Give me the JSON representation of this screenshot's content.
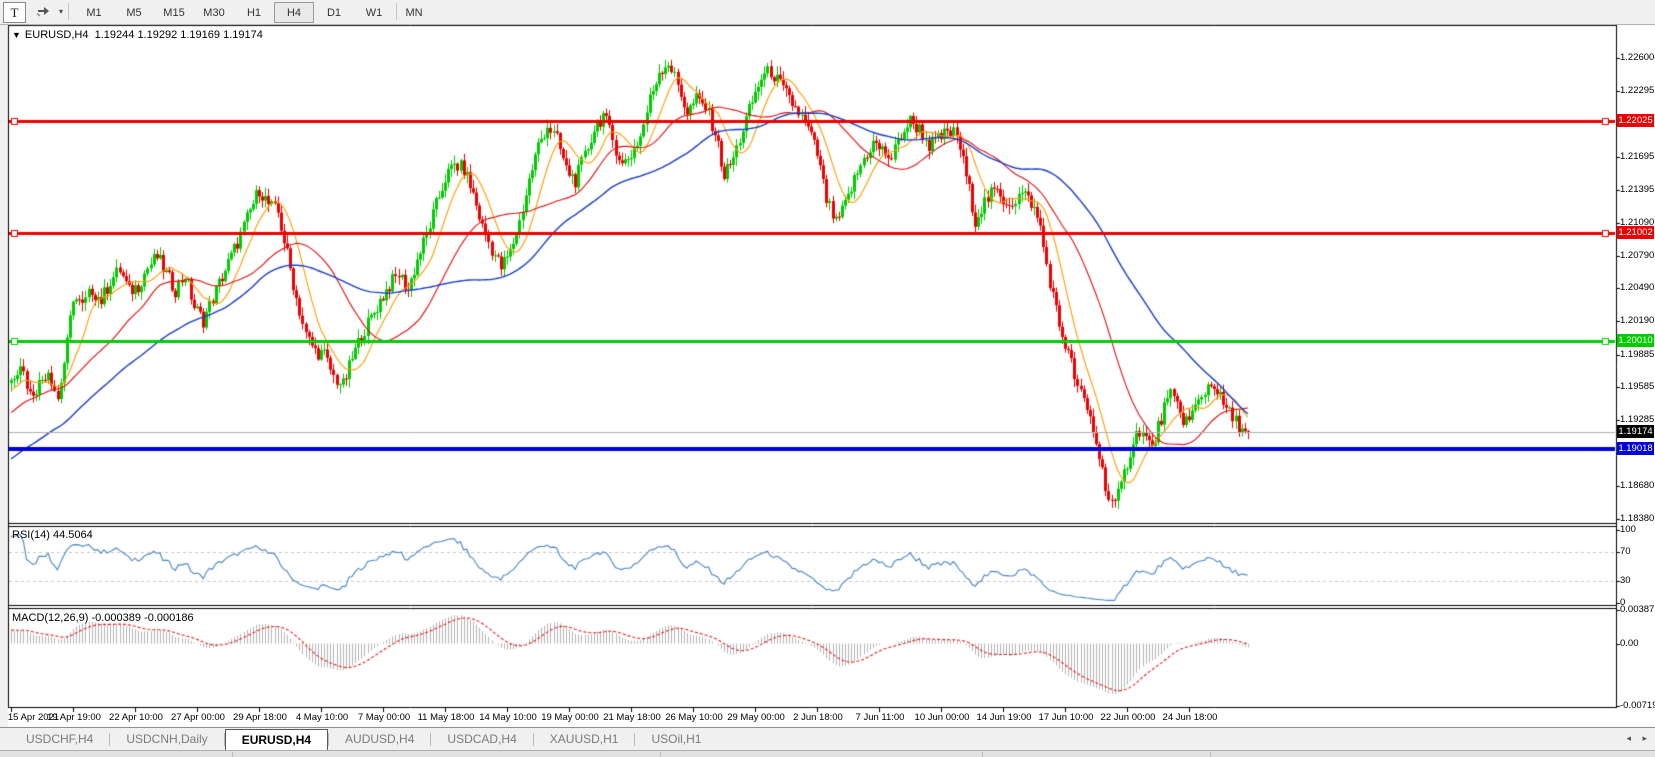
{
  "toolbar": {
    "tool_button_label": "T",
    "dropdown_caret": "▾",
    "timeframes": [
      "M1",
      "M5",
      "M15",
      "M30",
      "H1",
      "H4",
      "D1",
      "W1",
      "MN"
    ],
    "active_timeframe": "H4"
  },
  "chart": {
    "dropdown_arrow": "▼",
    "symbol_title": "EURUSD,H4",
    "ohlc_text": "1.19244 1.19292 1.19169 1.19174"
  },
  "chart_data": {
    "type": "candlestick",
    "symbol": "EURUSD",
    "timeframe": "H4",
    "bar_count": 400,
    "candle_up_color": "#00cc00",
    "candle_down_color": "#ee0000",
    "background": "#ffffff",
    "price_axis": {
      "min": 1.18353,
      "max": 1.22892,
      "tick_labels": [
        "1.22600",
        "1.22295",
        "1.21995",
        "1.21695",
        "1.21395",
        "1.21090",
        "1.20790",
        "1.20490",
        "1.20190",
        "1.19885",
        "1.19585",
        "1.19285",
        "1.18985",
        "1.18680",
        "1.18380"
      ],
      "tick_values": [
        1.226,
        1.22295,
        1.21995,
        1.21695,
        1.21395,
        1.2109,
        1.2079,
        1.2049,
        1.2019,
        1.19885,
        1.19585,
        1.19285,
        1.18985,
        1.1868,
        1.1838
      ]
    },
    "date_axis": {
      "tick_labels": [
        "15 Apr 2021",
        "19 Apr 19:00",
        "22 Apr 10:00",
        "27 Apr 00:00",
        "29 Apr 18:00",
        "4 May 10:00",
        "7 May 00:00",
        "11 May 18:00",
        "14 May 10:00",
        "19 May 00:00",
        "21 May 18:00",
        "26 May 10:00",
        "29 May 00:00",
        "2 Jun 18:00",
        "7 Jun 11:00",
        "10 Jun 00:00",
        "14 Jun 19:00",
        "17 Jun 10:00",
        "22 Jun 00:00",
        "24 Jun 18:00"
      ],
      "tick_bar_indices": [
        0,
        20,
        40,
        60,
        80,
        100,
        120,
        140,
        160,
        180,
        200,
        220,
        240,
        260,
        280,
        300,
        320,
        340,
        360,
        380
      ]
    },
    "close_anchors": [
      [
        0,
        1.1965
      ],
      [
        3,
        1.1982
      ],
      [
        6,
        1.1952
      ],
      [
        9,
        1.1962
      ],
      [
        12,
        1.1975
      ],
      [
        15,
        1.1948
      ],
      [
        18,
        1.1998
      ],
      [
        20,
        1.2042
      ],
      [
        23,
        1.2032
      ],
      [
        26,
        1.2048
      ],
      [
        29,
        1.2038
      ],
      [
        32,
        1.2056
      ],
      [
        35,
        1.2066
      ],
      [
        38,
        1.2046
      ],
      [
        41,
        1.2052
      ],
      [
        44,
        1.2068
      ],
      [
        47,
        1.2078
      ],
      [
        50,
        1.2062
      ],
      [
        53,
        1.2048
      ],
      [
        56,
        1.2062
      ],
      [
        59,
        1.2032
      ],
      [
        62,
        1.202
      ],
      [
        65,
        1.204
      ],
      [
        68,
        1.206
      ],
      [
        71,
        1.2078
      ],
      [
        74,
        1.2098
      ],
      [
        77,
        1.212
      ],
      [
        80,
        1.214
      ],
      [
        83,
        1.2126
      ],
      [
        86,
        1.2118
      ],
      [
        89,
        1.208
      ],
      [
        92,
        1.204
      ],
      [
        95,
        1.2006
      ],
      [
        98,
        1.1992
      ],
      [
        101,
        1.1988
      ],
      [
        104,
        1.1968
      ],
      [
        107,
        1.196
      ],
      [
        110,
        1.1985
      ],
      [
        113,
        1.2006
      ],
      [
        116,
        1.2022
      ],
      [
        119,
        1.2038
      ],
      [
        122,
        1.2052
      ],
      [
        125,
        1.2062
      ],
      [
        128,
        1.2048
      ],
      [
        131,
        1.2075
      ],
      [
        134,
        1.2098
      ],
      [
        137,
        1.2125
      ],
      [
        140,
        1.215
      ],
      [
        143,
        1.2162
      ],
      [
        146,
        1.2158
      ],
      [
        149,
        1.2135
      ],
      [
        152,
        1.2105
      ],
      [
        155,
        1.2085
      ],
      [
        158,
        1.2068
      ],
      [
        161,
        1.2082
      ],
      [
        164,
        1.211
      ],
      [
        167,
        1.2148
      ],
      [
        170,
        1.218
      ],
      [
        173,
        1.2198
      ],
      [
        176,
        1.2185
      ],
      [
        179,
        1.2158
      ],
      [
        182,
        1.2148
      ],
      [
        185,
        1.217
      ],
      [
        188,
        1.2195
      ],
      [
        191,
        1.2208
      ],
      [
        194,
        1.2185
      ],
      [
        197,
        1.2162
      ],
      [
        200,
        1.2172
      ],
      [
        203,
        1.2188
      ],
      [
        206,
        1.2222
      ],
      [
        209,
        1.2248
      ],
      [
        212,
        1.2256
      ],
      [
        215,
        1.2235
      ],
      [
        218,
        1.221
      ],
      [
        221,
        1.2222
      ],
      [
        224,
        1.2215
      ],
      [
        227,
        1.2192
      ],
      [
        230,
        1.2152
      ],
      [
        233,
        1.2168
      ],
      [
        236,
        1.2195
      ],
      [
        239,
        1.222
      ],
      [
        242,
        1.2242
      ],
      [
        245,
        1.2248
      ],
      [
        248,
        1.2235
      ],
      [
        251,
        1.2222
      ],
      [
        254,
        1.221
      ],
      [
        257,
        1.2195
      ],
      [
        260,
        1.2172
      ],
      [
        263,
        1.213
      ],
      [
        266,
        1.2108
      ],
      [
        269,
        1.2125
      ],
      [
        272,
        1.2148
      ],
      [
        275,
        1.2168
      ],
      [
        278,
        1.2182
      ],
      [
        281,
        1.2175
      ],
      [
        284,
        1.2168
      ],
      [
        287,
        1.219
      ],
      [
        290,
        1.2202
      ],
      [
        293,
        1.2195
      ],
      [
        296,
        1.218
      ],
      [
        299,
        1.2185
      ],
      [
        302,
        1.2192
      ],
      [
        305,
        1.219
      ],
      [
        308,
        1.2152
      ],
      [
        311,
        1.2112
      ],
      [
        314,
        1.2128
      ],
      [
        317,
        1.2138
      ],
      [
        320,
        1.213
      ],
      [
        323,
        1.2128
      ],
      [
        326,
        1.2136
      ],
      [
        329,
        1.2128
      ],
      [
        332,
        1.2105
      ],
      [
        334,
        1.207
      ],
      [
        336,
        1.2042
      ],
      [
        338,
        1.2015
      ],
      [
        340,
        1.1998
      ],
      [
        342,
        1.198
      ],
      [
        344,
        1.1958
      ],
      [
        346,
        1.1945
      ],
      [
        348,
        1.193
      ],
      [
        350,
        1.1908
      ],
      [
        352,
        1.1882
      ],
      [
        354,
        1.1858
      ],
      [
        356,
        1.185
      ],
      [
        358,
        1.1868
      ],
      [
        360,
        1.189
      ],
      [
        362,
        1.191
      ],
      [
        364,
        1.192
      ],
      [
        366,
        1.1912
      ],
      [
        368,
        1.1902
      ],
      [
        370,
        1.1922
      ],
      [
        372,
        1.194
      ],
      [
        374,
        1.195
      ],
      [
        376,
        1.1942
      ],
      [
        378,
        1.193
      ],
      [
        380,
        1.1928
      ],
      [
        382,
        1.194
      ],
      [
        384,
        1.195
      ],
      [
        386,
        1.196
      ],
      [
        388,
        1.1962
      ],
      [
        390,
        1.1948
      ],
      [
        392,
        1.1938
      ],
      [
        394,
        1.193
      ],
      [
        396,
        1.1924
      ],
      [
        398,
        1.1918
      ],
      [
        399,
        1.19174
      ]
    ],
    "prehistory_close_anchors": [
      [
        -70,
        1.1795
      ],
      [
        -55,
        1.183
      ],
      [
        -40,
        1.1868
      ],
      [
        -25,
        1.1912
      ],
      [
        -12,
        1.1945
      ]
    ],
    "noise": {
      "close_amp": 0.0007,
      "wick_amp": 0.0008
    },
    "moving_averages": [
      {
        "period": 10,
        "color": "#ff9c00"
      },
      {
        "period": 30,
        "color": "#e01010"
      },
      {
        "period": 65,
        "color": "#1a3fc8"
      }
    ],
    "levels": [
      {
        "label": "1.22025",
        "price": 1.22025,
        "color": "#ee0000",
        "thickness": 3,
        "handles": true
      },
      {
        "label": "1.21002",
        "price": 1.21002,
        "color": "#ee0000",
        "thickness": 3,
        "handles": true
      },
      {
        "label": "1.20010",
        "price": 1.2001,
        "color": "#00cc00",
        "thickness": 3,
        "handles": true
      },
      {
        "label": "1.19018",
        "price": 1.19018,
        "color": "#0000d8",
        "thickness": 4,
        "handles": false
      }
    ],
    "current_price": {
      "label": "1.19174",
      "price": 1.19174,
      "line_color": "#b0b0b0",
      "tag_color": "#000000"
    },
    "rsi": {
      "label": "RSI(14) 44.5064",
      "period": 14,
      "current_value": 44.5064,
      "line_color": "#4a86c8",
      "axis_labels": [
        "100",
        "70",
        "30",
        "0"
      ],
      "axis_values": [
        100,
        70,
        30,
        0
      ],
      "guide_levels": [
        70,
        30
      ]
    },
    "macd": {
      "label": "MACD(12,26,9) -0.000389 -0.000186",
      "fast": 12,
      "slow": 26,
      "signal_period": 9,
      "macd_value": -0.000389,
      "signal_value": -0.000186,
      "histogram_color": "#b4b4b4",
      "signal_color": "#e82020",
      "axis_labels": [
        "0.003873",
        "0.00",
        "-0.007195"
      ],
      "axis_values": [
        0.003873,
        0,
        -0.007195
      ],
      "max": 0.003873,
      "min": -0.007195
    }
  },
  "tabs": {
    "items": [
      "USDCHF,H4",
      "USDCNH,Daily",
      "EURUSD,H4",
      "AUDUSD,H4",
      "USDCAD,H4",
      "XAUUSD,H1",
      "USOil,H1"
    ],
    "active": "EURUSD,H4",
    "scroll_left": "◂",
    "scroll_right": "▸"
  }
}
